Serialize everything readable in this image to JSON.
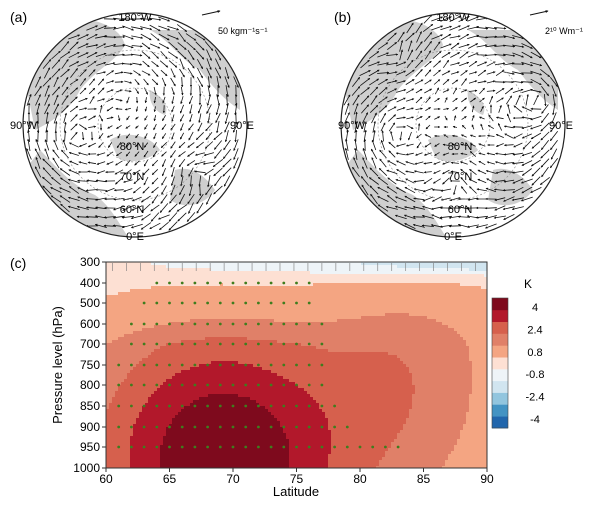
{
  "chart_data": [
    {
      "type": "polar-vector-map",
      "panel_label": "(a)",
      "meridian_labels": {
        "top": "180°W",
        "left": "90°W",
        "right": "90°E",
        "bottom": "0°E"
      },
      "latitude_labels": [
        "80°N",
        "70°N",
        "60°N"
      ],
      "reference_vector": {
        "value": "50",
        "unit": "kgm⁻¹s⁻¹"
      },
      "shading_color": "#cfcfcf",
      "arrow_color": "#111111"
    },
    {
      "type": "polar-vector-map",
      "panel_label": "(b)",
      "meridian_labels": {
        "top": "180°W",
        "left": "90°W",
        "right": "90°E",
        "bottom": "0°E"
      },
      "latitude_labels": [
        "80°N",
        "70°N",
        "60°N"
      ],
      "reference_vector": {
        "value": "2¹⁰",
        "unit": "Wm⁻¹"
      },
      "shading_color": "#cfcfcf",
      "arrow_color": "#111111"
    },
    {
      "type": "heatmap",
      "panel_label": "(c)",
      "xlabel": "Latitude",
      "ylabel": "Pressure level (hPa)",
      "xlim": [
        60,
        90
      ],
      "x_ticks": [
        60,
        65,
        70,
        75,
        80,
        85,
        90
      ],
      "y_ticks": [
        300,
        400,
        500,
        600,
        700,
        750,
        800,
        850,
        900,
        950,
        1000
      ],
      "colorbar": {
        "unit": "K",
        "ticks": [
          "4",
          "2.4",
          "0.8",
          "-0.8",
          "-2.4",
          "-4"
        ],
        "levels": [
          -4,
          -3.2,
          -2.4,
          -1.6,
          -0.8,
          0,
          0.8,
          1.6,
          2.4,
          3.2,
          4
        ],
        "colors": [
          "#2166ac",
          "#4393c3",
          "#92c5de",
          "#d1e5f0",
          "#eef4f8",
          "#fde0d3",
          "#f4a582",
          "#e08068",
          "#d6604d",
          "#b2182b",
          "#7e0a1d"
        ]
      },
      "field_peak": {
        "latitude": 69,
        "pressure": 975,
        "value": 4.2
      },
      "significance_marker_color": "#3f7d1e",
      "stippled_levels": [
        400,
        500,
        600,
        700,
        750,
        800,
        850,
        900,
        950
      ]
    }
  ]
}
